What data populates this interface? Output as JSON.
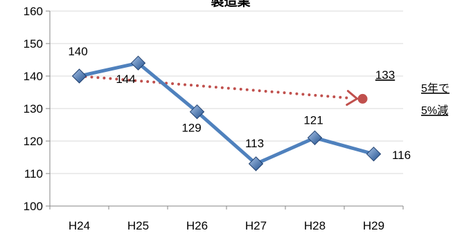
{
  "chart_data": {
    "type": "line",
    "title": "製造業",
    "categories": [
      "H24",
      "H25",
      "H26",
      "H27",
      "H28",
      "H29"
    ],
    "series": [
      {
        "values": [
          140,
          144,
          129,
          113,
          121,
          116
        ],
        "color": "#4f81bd"
      }
    ],
    "data_labels": [
      "140",
      "144",
      "129",
      "113",
      "121",
      "116"
    ],
    "trend": {
      "from_category": "H24",
      "to_category": "H29",
      "from_value": 140,
      "to_value": 133,
      "label": "133",
      "color": "#c0504d",
      "style": "dotted-arrow"
    },
    "annotation": [
      "5年で",
      "5%減"
    ],
    "ylim": [
      100,
      160
    ],
    "yticks": [
      100,
      110,
      120,
      130,
      140,
      150,
      160
    ],
    "grid": true,
    "xlabel": "",
    "ylabel": ""
  }
}
